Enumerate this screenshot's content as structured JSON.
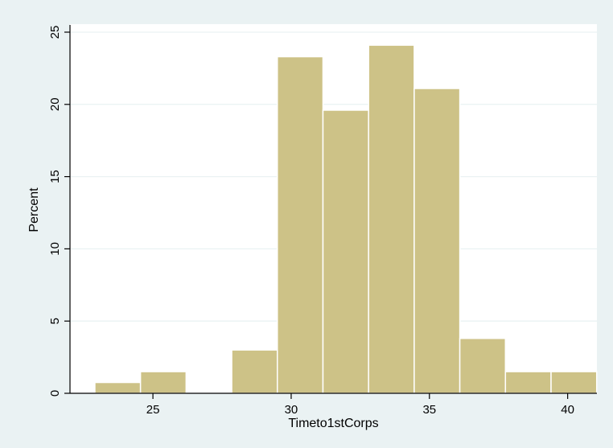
{
  "chart_data": {
    "type": "bar",
    "subtype": "histogram",
    "xlabel": "Timeto1stCorps",
    "ylabel": "Percent",
    "xlim": [
      22,
      41
    ],
    "ylim": [
      0,
      25.5
    ],
    "x_ticks": [
      25,
      30,
      35,
      40
    ],
    "y_ticks": [
      0,
      5,
      10,
      15,
      20,
      25
    ],
    "grid": true,
    "bins": [
      {
        "x0": 22.9,
        "x1": 24.55,
        "value": 0.75
      },
      {
        "x0": 24.55,
        "x1": 26.2,
        "value": 1.5
      },
      {
        "x0": 26.2,
        "x1": 27.85,
        "value": 0
      },
      {
        "x0": 27.85,
        "x1": 29.5,
        "value": 3.0
      },
      {
        "x0": 29.5,
        "x1": 31.15,
        "value": 23.3
      },
      {
        "x0": 31.15,
        "x1": 32.8,
        "value": 19.6
      },
      {
        "x0": 32.8,
        "x1": 34.45,
        "value": 24.1
      },
      {
        "x0": 34.45,
        "x1": 36.1,
        "value": 21.1
      },
      {
        "x0": 36.1,
        "x1": 37.75,
        "value": 3.8
      },
      {
        "x0": 37.75,
        "x1": 39.4,
        "value": 1.5
      },
      {
        "x0": 39.4,
        "x1": 41.05,
        "value": 1.5
      }
    ],
    "colors": {
      "background": "#eaf2f3",
      "plot_background": "#ffffff",
      "bar_fill": "#cdc287",
      "bar_stroke": "#ffffff",
      "grid": "#eaf2f3",
      "axis": "#000000"
    }
  }
}
